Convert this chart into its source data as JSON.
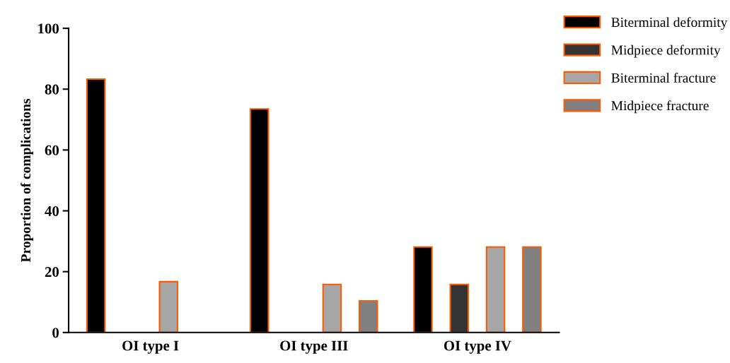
{
  "chart_data": {
    "type": "bar",
    "ylabel": "Proportion of complications",
    "categories": [
      "OI type I",
      "OI type III",
      "OI type IV"
    ],
    "series": [
      {
        "name": "Biterminal deformity",
        "color": "#000000",
        "values": [
          83.3,
          73.5,
          28.1
        ]
      },
      {
        "name": "Midpiece deformity",
        "color": "#333333",
        "values": [
          null,
          null,
          15.8
        ]
      },
      {
        "name": "Biterminal fracture",
        "color": "#a6a6a6",
        "values": [
          16.7,
          15.8,
          28.1
        ]
      },
      {
        "name": "Midpiece fracture",
        "color": "#808080",
        "values": [
          null,
          10.4,
          28.1
        ]
      }
    ],
    "ylim": [
      0,
      100
    ],
    "yticks": [
      0,
      20,
      40,
      60,
      80,
      100
    ],
    "grid": false,
    "legend": "top right"
  }
}
